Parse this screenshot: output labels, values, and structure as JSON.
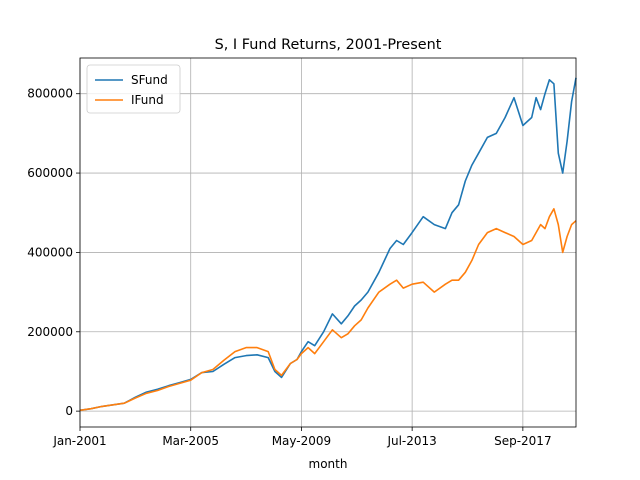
{
  "chart_data": {
    "type": "line",
    "title": "S, I Fund Returns, 2001-Present",
    "xlabel": "month",
    "ylabel": "",
    "x_ticks": [
      "Jan-2001",
      "Mar-2005",
      "May-2009",
      "Jul-2013",
      "Sep-2017"
    ],
    "x_tick_months": [
      0,
      50,
      100,
      150,
      200
    ],
    "xlim": [
      0,
      224
    ],
    "y_ticks": [
      0,
      200000,
      400000,
      600000,
      800000
    ],
    "y_tick_labels": [
      "0",
      "200000",
      "400000",
      "600000",
      "800000"
    ],
    "ylim": [
      -40000,
      890000
    ],
    "grid": true,
    "legend_position": "upper-left",
    "series": [
      {
        "name": "SFund",
        "color": "#1f77b4",
        "x": [
          0,
          5,
          10,
          15,
          20,
          25,
          30,
          35,
          40,
          45,
          50,
          55,
          60,
          65,
          70,
          75,
          80,
          85,
          88,
          91,
          95,
          98,
          100,
          103,
          106,
          110,
          114,
          118,
          121,
          124,
          127,
          130,
          135,
          140,
          143,
          146,
          150,
          155,
          160,
          165,
          168,
          171,
          174,
          177,
          180,
          184,
          188,
          192,
          196,
          200,
          204,
          206,
          208,
          210,
          212,
          214,
          216,
          218,
          220,
          222,
          224
        ],
        "y": [
          2000,
          6000,
          12000,
          16000,
          20000,
          35000,
          48000,
          55000,
          64000,
          72000,
          80000,
          97000,
          100000,
          118000,
          135000,
          140000,
          142000,
          135000,
          100000,
          85000,
          120000,
          130000,
          150000,
          175000,
          165000,
          200000,
          245000,
          220000,
          240000,
          265000,
          280000,
          300000,
          350000,
          410000,
          430000,
          420000,
          450000,
          490000,
          470000,
          460000,
          500000,
          520000,
          580000,
          620000,
          650000,
          690000,
          700000,
          740000,
          790000,
          720000,
          740000,
          790000,
          760000,
          800000,
          835000,
          825000,
          650000,
          600000,
          680000,
          780000,
          840000
        ]
      },
      {
        "name": "IFund",
        "color": "#ff7f0e",
        "x": [
          0,
          5,
          10,
          15,
          20,
          25,
          30,
          35,
          40,
          45,
          50,
          55,
          60,
          65,
          70,
          75,
          80,
          85,
          88,
          91,
          95,
          98,
          100,
          103,
          106,
          110,
          114,
          118,
          121,
          124,
          127,
          130,
          135,
          140,
          143,
          146,
          150,
          155,
          160,
          165,
          168,
          171,
          174,
          177,
          180,
          184,
          188,
          192,
          196,
          200,
          204,
          206,
          208,
          210,
          212,
          214,
          216,
          218,
          220,
          222,
          224
        ],
        "y": [
          2000,
          6000,
          12000,
          16000,
          20000,
          33000,
          45000,
          52000,
          62000,
          70000,
          78000,
          97000,
          105000,
          128000,
          150000,
          160000,
          160000,
          150000,
          105000,
          90000,
          120000,
          130000,
          145000,
          160000,
          145000,
          175000,
          205000,
          185000,
          195000,
          215000,
          230000,
          260000,
          300000,
          320000,
          330000,
          310000,
          320000,
          325000,
          300000,
          320000,
          330000,
          330000,
          350000,
          380000,
          420000,
          450000,
          460000,
          450000,
          440000,
          420000,
          430000,
          450000,
          470000,
          460000,
          490000,
          510000,
          470000,
          400000,
          440000,
          470000,
          480000
        ]
      }
    ]
  }
}
